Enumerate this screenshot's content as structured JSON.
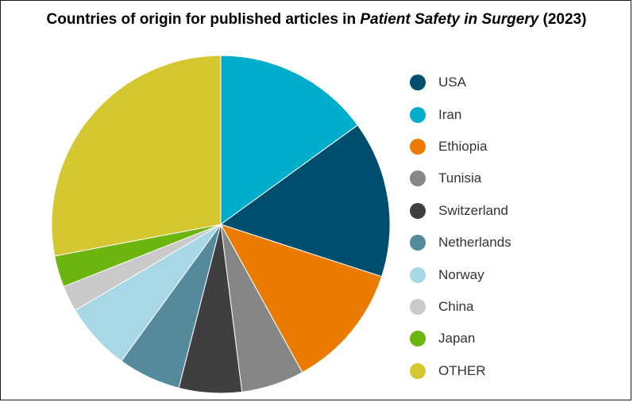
{
  "chart_data": {
    "type": "pie",
    "title_pre": "Countries of origin for published articles in ",
    "title_em": "Patient Safety in Surgery",
    "title_post": " (2023)",
    "start_angle_deg": 0,
    "direction": "clockwise",
    "legend_position": "right",
    "slices": [
      {
        "label": "Iran",
        "value": 15,
        "color": "#00AECC"
      },
      {
        "label": "USA",
        "value": 15,
        "color": "#004E6E"
      },
      {
        "label": "Ethiopia",
        "value": 12,
        "color": "#EB7A00"
      },
      {
        "label": "Tunisia",
        "value": 6,
        "color": "#848688"
      },
      {
        "label": "Switzerland",
        "value": 6,
        "color": "#3F3F3F"
      },
      {
        "label": "Netherlands",
        "value": 6,
        "color": "#558A9C"
      },
      {
        "label": "Norway",
        "value": 6.5,
        "color": "#A8D7E6"
      },
      {
        "label": "China",
        "value": 2.5,
        "color": "#C9C9C9"
      },
      {
        "label": "Japan",
        "value": 3,
        "color": "#6BB50E"
      },
      {
        "label": "OTHER",
        "value": 28,
        "color": "#D5C730"
      }
    ],
    "legend": [
      {
        "label": "USA",
        "color": "#004E6E"
      },
      {
        "label": "Iran",
        "color": "#00AECC"
      },
      {
        "label": "Ethiopia",
        "color": "#EB7A00"
      },
      {
        "label": "Tunisia",
        "color": "#848688"
      },
      {
        "label": "Switzerland",
        "color": "#3F3F3F"
      },
      {
        "label": "Netherlands",
        "color": "#558A9C"
      },
      {
        "label": "Norway",
        "color": "#A8D7E6"
      },
      {
        "label": "China",
        "color": "#C9C9C9"
      },
      {
        "label": "Japan",
        "color": "#6BB50E"
      },
      {
        "label": "OTHER",
        "color": "#D5C730"
      }
    ]
  }
}
